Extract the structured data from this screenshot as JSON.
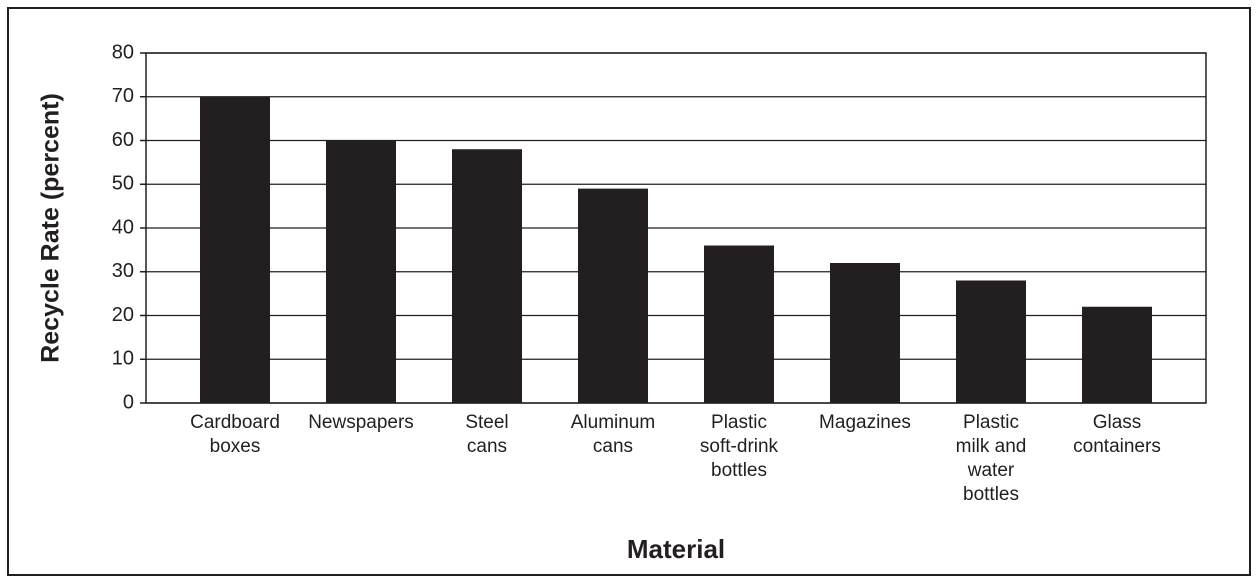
{
  "chart_data": {
    "type": "bar",
    "categories": [
      "Cardboard\nboxes",
      "Newspapers",
      "Steel\ncans",
      "Aluminum\ncans",
      "Plastic\nsoft-drink\nbottles",
      "Magazines",
      "Plastic\nmilk and\nwater\nbottles",
      "Glass\ncontainers"
    ],
    "values": [
      70,
      60,
      58,
      49,
      36,
      32,
      28,
      22
    ],
    "color": "#231f20",
    "ylim": [
      0,
      80
    ],
    "yticks": [
      0,
      10,
      20,
      30,
      40,
      50,
      60,
      70,
      80
    ],
    "grid": true,
    "xlabel": "Material",
    "ylabel": "Recycle Rate (percent)"
  }
}
